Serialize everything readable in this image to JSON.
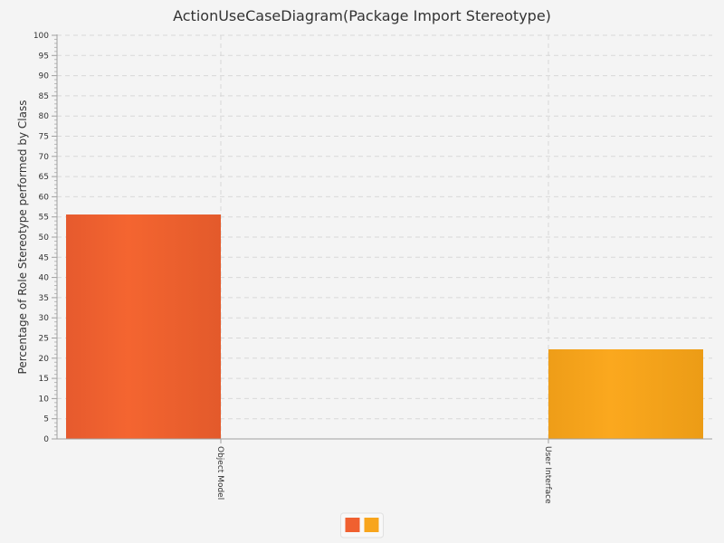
{
  "chart_data": {
    "type": "bar",
    "title": "ActionUseCaseDiagram(Package Import Stereotype)",
    "xlabel": "",
    "ylabel": "Percentage of Role Stereotype performed by Class",
    "categories": [
      "Object Model",
      "User Interface"
    ],
    "series": [
      {
        "values": [
          55.6,
          0
        ],
        "color": "#f06030"
      },
      {
        "values": [
          0,
          22.2
        ],
        "color": "#f8a51c"
      }
    ],
    "ylim": [
      0,
      100
    ],
    "ytick_step": 5,
    "grid": true,
    "legend": "bottom-center"
  }
}
